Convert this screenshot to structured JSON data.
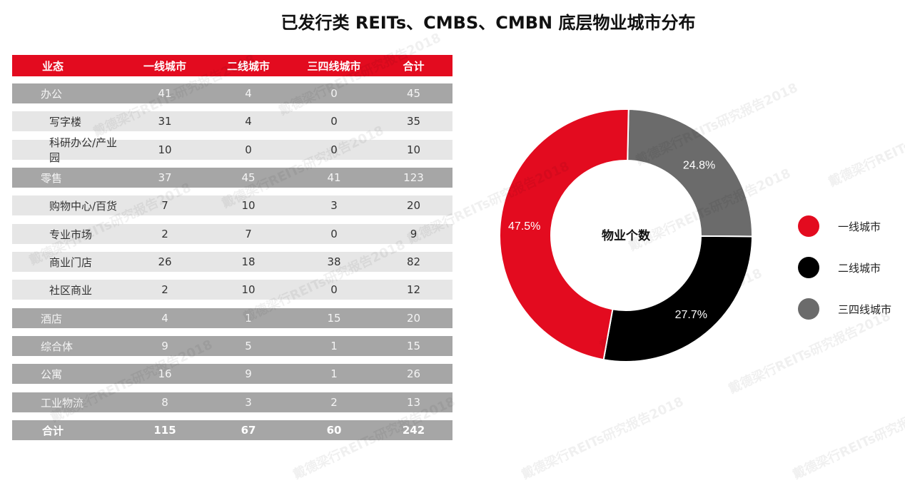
{
  "title": "已发行类 REITs、CMBS、CMBN 底层物业城市分布",
  "table": {
    "headers": [
      "业态",
      "一线城市",
      "二线城市",
      "三四线城市",
      "合计"
    ],
    "rows": [
      {
        "kind": "group",
        "cells": [
          "办公",
          "41",
          "4",
          "0",
          "45"
        ]
      },
      {
        "kind": "sub",
        "cells": [
          "写字楼",
          "31",
          "4",
          "0",
          "35"
        ]
      },
      {
        "kind": "sub",
        "cells": [
          "科研办公/产业园",
          "10",
          "0",
          "0",
          "10"
        ]
      },
      {
        "kind": "group",
        "cells": [
          "零售",
          "37",
          "45",
          "41",
          "123"
        ]
      },
      {
        "kind": "sub",
        "cells": [
          "购物中心/百货",
          "7",
          "10",
          "3",
          "20"
        ]
      },
      {
        "kind": "sub",
        "cells": [
          "专业市场",
          "2",
          "7",
          "0",
          "9"
        ]
      },
      {
        "kind": "sub",
        "cells": [
          "商业门店",
          "26",
          "18",
          "38",
          "82"
        ]
      },
      {
        "kind": "sub",
        "cells": [
          "社区商业",
          "2",
          "10",
          "0",
          "12"
        ]
      },
      {
        "kind": "group",
        "cells": [
          "酒店",
          "4",
          "1",
          "15",
          "20"
        ]
      },
      {
        "kind": "group",
        "cells": [
          "综合体",
          "9",
          "5",
          "1",
          "15"
        ]
      },
      {
        "kind": "group",
        "cells": [
          "公寓",
          "16",
          "9",
          "1",
          "26"
        ]
      },
      {
        "kind": "group",
        "cells": [
          "工业物流",
          "8",
          "3",
          "2",
          "13"
        ]
      },
      {
        "kind": "total",
        "cells": [
          "合计",
          "115",
          "67",
          "60",
          "242"
        ]
      }
    ]
  },
  "chart_data": {
    "type": "pie",
    "center_label": "物业个数",
    "categories": [
      "一线城市",
      "二线城市",
      "三四线城市"
    ],
    "values": [
      47.5,
      27.7,
      24.8
    ],
    "value_labels": [
      "47.5%",
      "27.7%",
      "24.8%"
    ],
    "colors": [
      "#e30b1f",
      "#000000",
      "#6b6b6b"
    ],
    "legend_placement": "right"
  },
  "watermark": "戴德梁行REITs研究报告2018"
}
